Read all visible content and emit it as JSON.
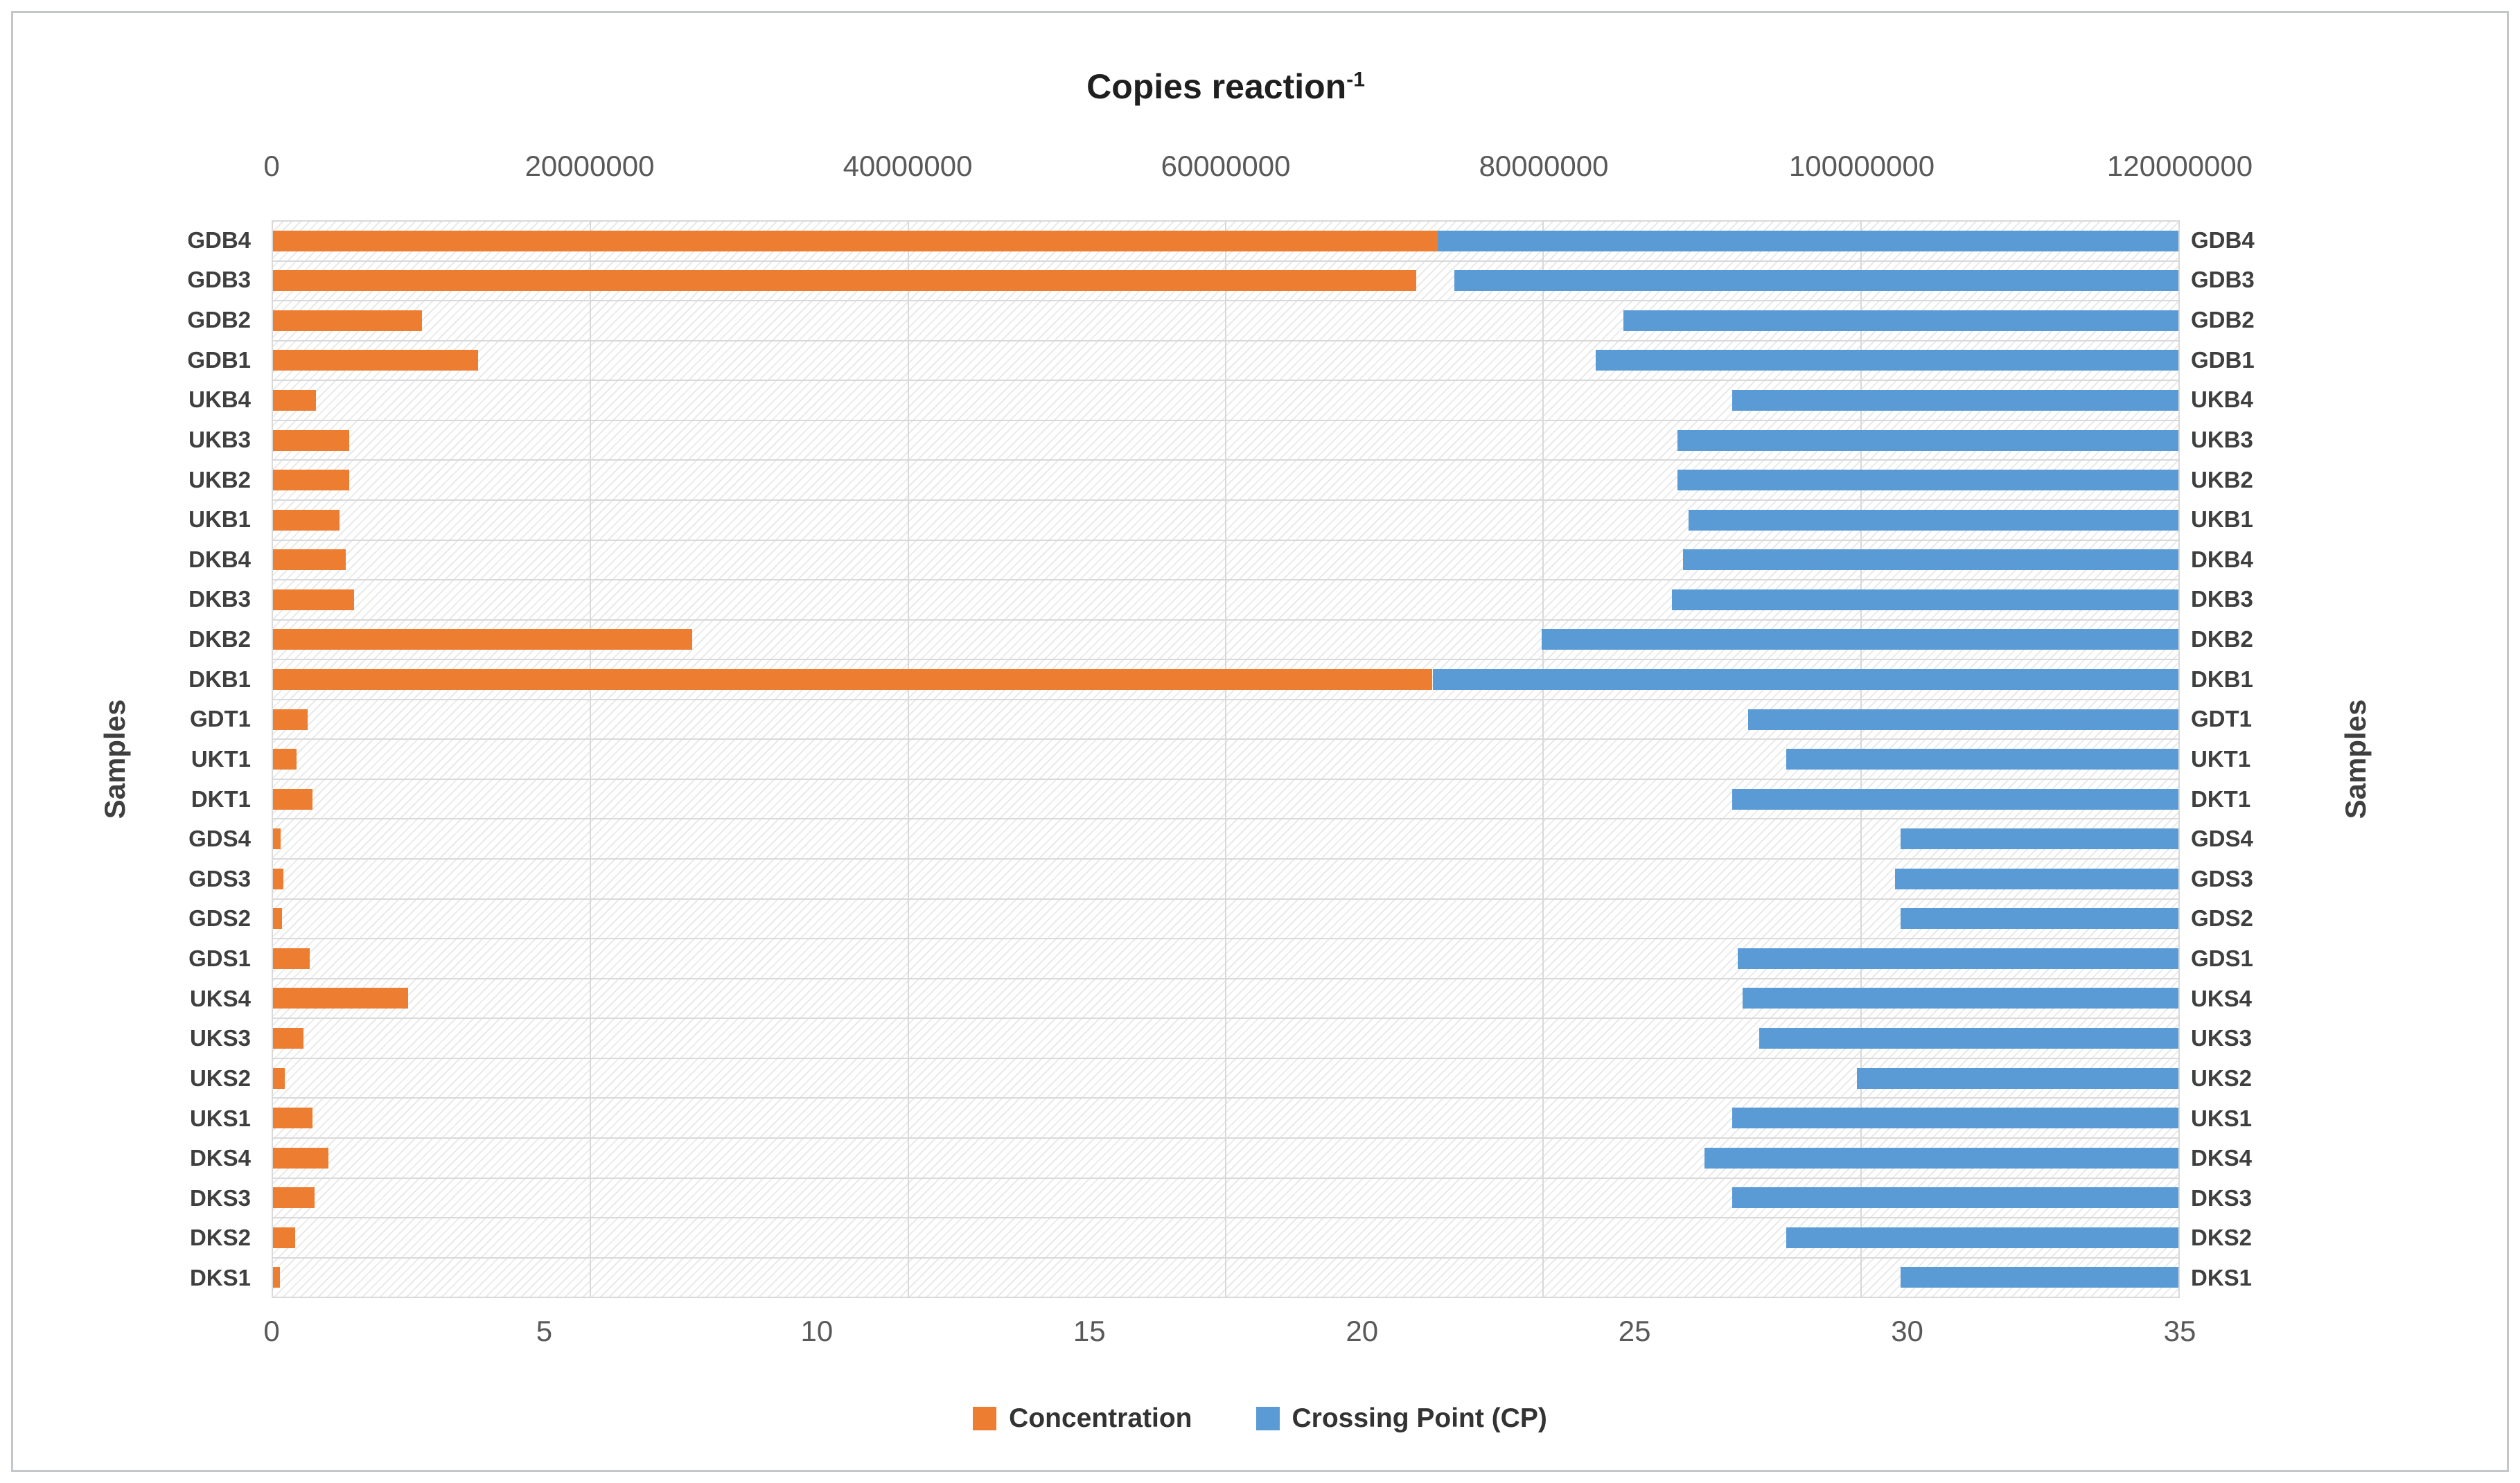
{
  "title": {
    "text": "Copies reaction",
    "superscript": "-1"
  },
  "colors": {
    "concentration": "#ED7D31",
    "crossing_point": "#5B9BD5",
    "gridline": "#D9D9D9",
    "tick_text": "#595959",
    "label_text": "#3F3F3F",
    "frame_border": "#C3C7C9"
  },
  "axes": {
    "top": {
      "ticks": [
        "0",
        "20000000",
        "40000000",
        "60000000",
        "80000000",
        "100000000",
        "120000000"
      ]
    },
    "bottom": {
      "ticks": [
        "0",
        "5",
        "10",
        "15",
        "20",
        "25",
        "30",
        "35"
      ]
    },
    "left_title": "Samples",
    "right_title": "Samples"
  },
  "legend": [
    {
      "label": "Concentration",
      "color": "#ED7D31"
    },
    {
      "label": "Crossing Point (CP)",
      "color": "#5B9BD5"
    }
  ],
  "chart_data": {
    "type": "bar",
    "orientation": "horizontal",
    "title": "Copies reaction^-1",
    "categories": [
      "GDB4",
      "GDB3",
      "GDB2",
      "GDB1",
      "UKB4",
      "UKB3",
      "UKB2",
      "UKB1",
      "DKB4",
      "DKB3",
      "DKB2",
      "DKB1",
      "GDT1",
      "UKT1",
      "DKT1",
      "GDS4",
      "GDS3",
      "GDS2",
      "GDS1",
      "UKS4",
      "UKS3",
      "UKS2",
      "UKS1",
      "DKS4",
      "DKS3",
      "DKS2",
      "DKS1"
    ],
    "series": [
      {
        "name": "Concentration",
        "axis": "top",
        "unit": "copies reaction^-1",
        "values": [
          73500000,
          72000000,
          9400000,
          12900000,
          2700000,
          4800000,
          4800000,
          4200000,
          4600000,
          5100000,
          26400000,
          73000000,
          2200000,
          1500000,
          2500000,
          500000,
          650000,
          550000,
          2300000,
          8500000,
          1900000,
          750000,
          2500000,
          3500000,
          2600000,
          1400000,
          450000
        ]
      },
      {
        "name": "Crossing Point (CP)",
        "axis": "bottom",
        "unit": "cycles",
        "note": "bars drawn from CP value to axis maximum 35",
        "values": [
          21.4,
          21.7,
          24.8,
          24.3,
          26.8,
          25.8,
          25.8,
          26.0,
          25.9,
          25.7,
          23.3,
          21.3,
          27.1,
          27.8,
          26.8,
          29.9,
          29.8,
          29.9,
          26.9,
          27.0,
          27.3,
          29.1,
          26.8,
          26.3,
          26.8,
          27.8,
          29.9
        ]
      }
    ],
    "top_axis_range": [
      0,
      120000000
    ],
    "bottom_axis_range": [
      0,
      35
    ],
    "grid": "vertical gridlines every 20000000 (top axis); horizontal gridline between every category",
    "legend_position": "bottom center",
    "plot_background": "white with light gray downward-diagonal hatch pattern"
  }
}
